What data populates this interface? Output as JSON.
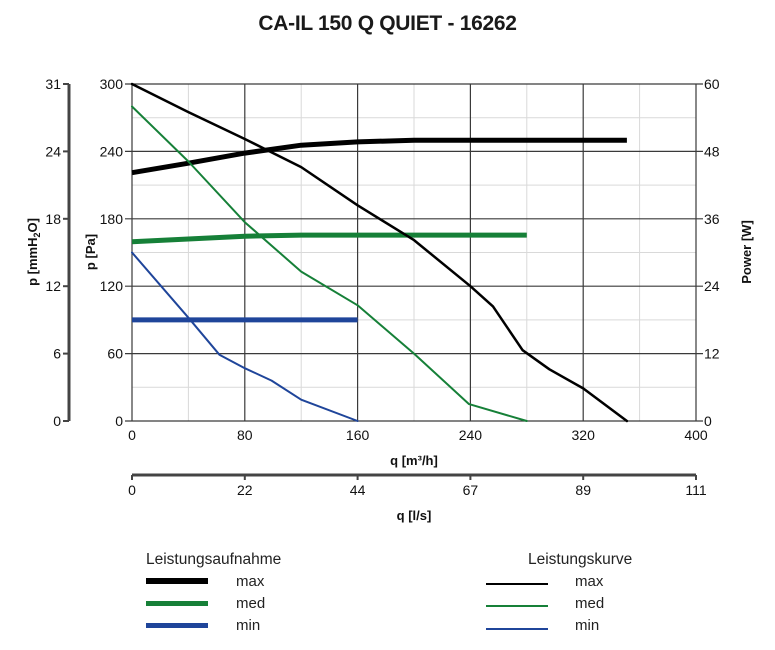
{
  "title": "CA-IL 150 Q QUIET - 16262",
  "axes": {
    "x_main": {
      "label": "q [m³/h]",
      "ticks": [
        "0",
        "80",
        "160",
        "240",
        "320",
        "400"
      ],
      "range": [
        0,
        400
      ]
    },
    "x_secondary": {
      "label": "q [l/s]",
      "ticks": [
        "0",
        "22",
        "44",
        "67",
        "89",
        "111"
      ]
    },
    "y_left_pa": {
      "label": "p [Pa]",
      "ticks": [
        "0",
        "60",
        "120",
        "180",
        "240",
        "300"
      ],
      "range": [
        0,
        300
      ]
    },
    "y_left_mmh2o": {
      "label_main": "p [mmH",
      "label_sub": "2",
      "label_end": "O]",
      "ticks": [
        "0",
        "6",
        "12",
        "18",
        "24",
        "31"
      ]
    },
    "y_right_power": {
      "label": "Power [W]",
      "ticks": [
        "0",
        "12",
        "24",
        "36",
        "48",
        "60"
      ],
      "range": [
        0,
        60
      ]
    }
  },
  "colors": {
    "max": "#000000",
    "med": "#168038",
    "min": "#1f459a",
    "grid_major": "#3a3a3a",
    "grid_minor": "#d9d9d9"
  },
  "legend": {
    "left": {
      "title": "Leistungsaufnahme",
      "items": [
        "max",
        "med",
        "min"
      ]
    },
    "right": {
      "title": "Leistungskurve",
      "items": [
        "max",
        "med",
        "min"
      ]
    }
  },
  "chart_data": {
    "type": "line",
    "title": "CA-IL 150 Q QUIET - 16262",
    "xlabel": "q [m³/h]",
    "xlabel_secondary": "q [l/s]",
    "ylabel": "p [Pa]",
    "ylabel_secondary": "p [mmH2O]",
    "ylabel_right": "Power [W]",
    "xlim": [
      0,
      400
    ],
    "ylim": [
      0,
      300
    ],
    "ylim_right": [
      0,
      60
    ],
    "grid": true,
    "legend_position": "bottom",
    "series": [
      {
        "name": "Leistungskurve max",
        "axis": "left",
        "unit": "Pa",
        "width": 2.5,
        "color": "#000000",
        "x": [
          0,
          40,
          80,
          120,
          160,
          200,
          240,
          256,
          277,
          296,
          320,
          351
        ],
        "y": [
          300,
          275,
          251,
          226,
          192,
          161,
          120,
          102,
          63,
          46,
          29,
          0
        ]
      },
      {
        "name": "Leistungskurve med",
        "axis": "left",
        "unit": "Pa",
        "width": 2,
        "color": "#168038",
        "x": [
          0,
          40,
          80,
          120,
          160,
          200,
          239,
          280
        ],
        "y": [
          280,
          231,
          177,
          133,
          103,
          60,
          15,
          0
        ]
      },
      {
        "name": "Leistungskurve min",
        "axis": "left",
        "unit": "Pa",
        "width": 2,
        "color": "#1f459a",
        "x": [
          0,
          40,
          62,
          80,
          99,
          120,
          160
        ],
        "y": [
          150,
          92,
          59,
          47,
          36,
          19,
          0
        ]
      },
      {
        "name": "Leistungsaufnahme max",
        "axis": "right",
        "unit": "W",
        "width": 5,
        "color": "#000000",
        "x": [
          0,
          40,
          80,
          120,
          160,
          200,
          351
        ],
        "y": [
          44.2,
          45.9,
          47.7,
          49.1,
          49.7,
          50,
          50
        ]
      },
      {
        "name": "Leistungsaufnahme med",
        "axis": "right",
        "unit": "W",
        "width": 5,
        "color": "#168038",
        "x": [
          0,
          80,
          120,
          280
        ],
        "y": [
          31.9,
          32.9,
          33.1,
          33.1
        ]
      },
      {
        "name": "Leistungsaufnahme min",
        "axis": "right",
        "unit": "W",
        "width": 5,
        "color": "#1f459a",
        "x": [
          0,
          160
        ],
        "y": [
          18,
          18
        ]
      }
    ]
  }
}
